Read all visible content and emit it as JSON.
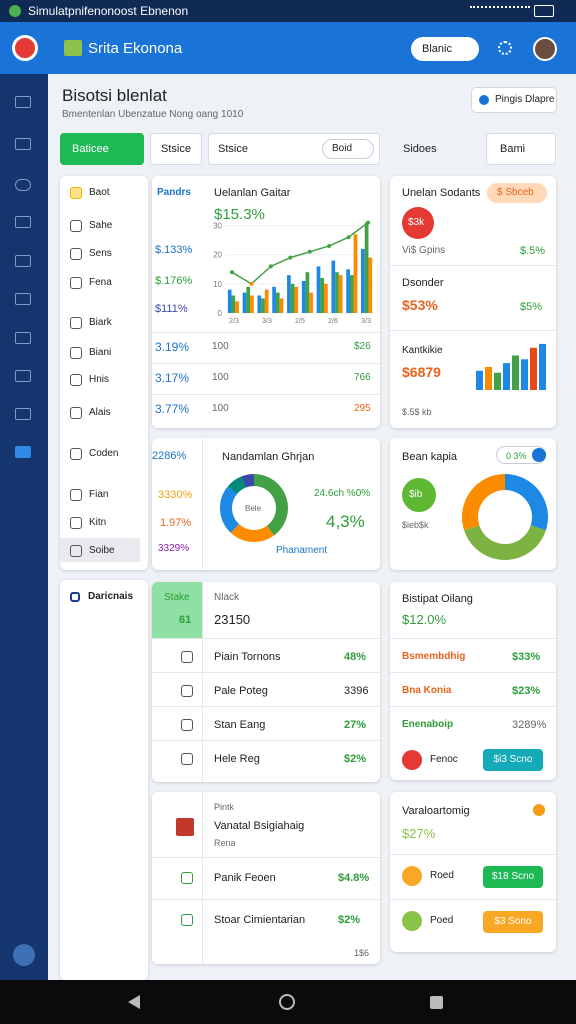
{
  "status_bar": {
    "title": "Simulatpnifenonoost Ebnenon"
  },
  "app_bar": {
    "title": "Srita Ekonona",
    "search": "Blanic"
  },
  "header": {
    "title": "Bisotsi blenlat",
    "subtitle": "Bmentenlan Ubenzatue Nong oang 1010",
    "button": "Pingis Dlapre"
  },
  "toolbar": {
    "primary": "Baticee",
    "secondary": "Stsice",
    "filter": "Stsice",
    "filter_value": "Boid",
    "search": "Sidoes",
    "sort": "Bami"
  },
  "side_menu": {
    "items": [
      "Baot",
      "Sahe",
      "Sens",
      "Fena",
      "Biark",
      "Biani",
      "Hnis",
      "Alais",
      "Coden",
      "Fian",
      "Kitn",
      "Soibe"
    ],
    "section": "Daricnais"
  },
  "trend_card": {
    "legend": "Pandrs",
    "title": "Uelanlan Gaitar",
    "value": "$15.3%",
    "left_labels": [
      "$.133%",
      "$.176%",
      "$111%"
    ],
    "rows": [
      {
        "left": "3.19%",
        "mid": "100",
        "right": "$26"
      },
      {
        "left": "3.17%",
        "mid": "100",
        "right": "766"
      },
      {
        "left": "3.77%",
        "mid": "100",
        "right": "295"
      }
    ],
    "chart": {
      "ylim": [
        0,
        35
      ],
      "yticks": [
        0,
        10,
        20,
        30
      ],
      "xlabels": [
        "2/3",
        "3/3",
        "2/5",
        "2/6",
        "3/3"
      ],
      "bars": [
        {
          "color": "#1e88e5",
          "values": [
            8,
            7,
            6,
            9,
            13,
            11,
            16,
            18,
            15,
            22
          ]
        },
        {
          "color": "#43a047",
          "values": [
            6,
            9,
            5,
            7,
            10,
            14,
            12,
            14,
            13,
            31
          ]
        },
        {
          "color": "#fb8c00",
          "values": [
            4,
            6,
            8,
            5,
            9,
            7,
            10,
            13,
            27,
            19
          ]
        }
      ],
      "line": {
        "color": "#43a047",
        "values": [
          14,
          10,
          16,
          19,
          21,
          23,
          26,
          31
        ]
      }
    }
  },
  "sales_card": {
    "title": "Unelan Sodants",
    "badge": "$ Sbceb",
    "icon": "$3k",
    "row1": {
      "label": "Vi$ Gpins",
      "value": "$.5%"
    },
    "row2": {
      "label": "Dsonder",
      "value": "$53%",
      "extra": "$5%"
    },
    "row3": {
      "label": "Kantkikie",
      "value": "$6879",
      "foot": "$.5$ kb"
    },
    "bars": {
      "ylim": [
        0,
        25
      ],
      "colors": [
        "#1e88e5",
        "#fb8c00",
        "#43a047",
        "#1e88e5",
        "#43a047",
        "#1e88e5",
        "#e64a19",
        "#1e88e5"
      ],
      "values": [
        10,
        12,
        9,
        14,
        18,
        16,
        22,
        24
      ]
    }
  },
  "donut_card": {
    "title": "Nandamlan Ghrjan",
    "labels": [
      "2286%",
      "3330%",
      "1.97%",
      "3329%"
    ],
    "center": "Bele",
    "note": "24.6ch %0%",
    "value": "4,3%",
    "legend": "Phanament",
    "segments": [
      {
        "color": "#43a047",
        "value": 40
      },
      {
        "color": "#fb8c00",
        "value": 22
      },
      {
        "color": "#1e88e5",
        "value": 24
      },
      {
        "color": "#00897b",
        "value": 8
      },
      {
        "color": "#3949ab",
        "value": 6
      }
    ]
  },
  "pie_card": {
    "title": "Bean kapia",
    "toggle": "0 3%",
    "icon": "$ib",
    "label": "$ieb$k",
    "segments": [
      {
        "color": "#1e88e5",
        "value": 30
      },
      {
        "color": "#7cb342",
        "value": 40
      },
      {
        "color": "#fb8c00",
        "value": 30
      }
    ]
  },
  "list_card": {
    "stake": "Stake",
    "stake_value": "61",
    "head": "Nlack",
    "head_value": "23150",
    "rows": [
      {
        "label": "Piain Tornons",
        "value": "48%"
      },
      {
        "label": "Pale Poteg",
        "value": "3396"
      },
      {
        "label": "Stan Eang",
        "value": "27%"
      },
      {
        "label": "Hele Reg",
        "value": "$2%"
      }
    ]
  },
  "growth_card": {
    "title": "Bistipat Oilang",
    "value": "$12.0%",
    "rows": [
      {
        "label": "Bsmembdhig",
        "value": "$33%"
      },
      {
        "label": "Bna Konia",
        "value": "$23%"
      },
      {
        "label": "Enenaboip",
        "value": "3289%"
      }
    ],
    "footer": "Fenoc",
    "button": "$i3 Scno"
  },
  "detail_card": {
    "kicker": "Pintk",
    "title": "Vanatal Bsigiahaig",
    "sub": "Rena",
    "rows": [
      {
        "label": "Panik Feoen",
        "value": "$4.8%"
      },
      {
        "label": "Stoar Cimientarian",
        "value": "$2%"
      }
    ],
    "foot": "1$6"
  },
  "var_card": {
    "title": "Varaloartomig",
    "value": "$27%",
    "rows": [
      {
        "label": "Roed",
        "button": "$18 Scno"
      },
      {
        "label": "Poed",
        "button": "$3 Sono"
      }
    ]
  }
}
